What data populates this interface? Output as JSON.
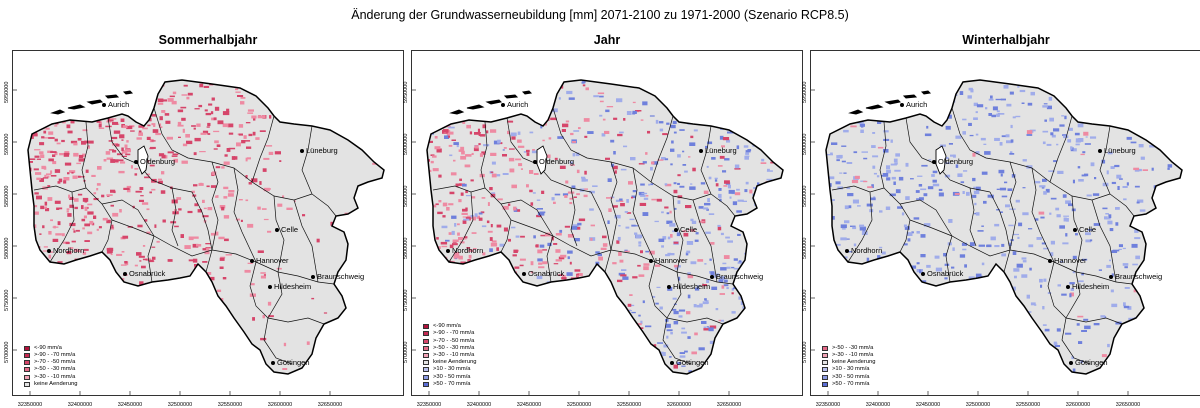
{
  "title": "Änderung der Grundwasserneubildung [mm] 2071-2100 zu 1971-2000 (Szenario RCP8.5)",
  "colors": {
    "region_fill": "#e3e3e3",
    "red_dominant": "#d6456a",
    "red_light": "#ee8aa2",
    "blue_light": "#a0acea",
    "blue_mid": "#6f80dc",
    "border": "#000000"
  },
  "x_ticks": [
    "32350000",
    "32400000",
    "32450000",
    "32500000",
    "32550000",
    "32600000",
    "32650000"
  ],
  "y_ticks": [
    "5950000",
    "5900000",
    "5850000",
    "5800000",
    "5750000",
    "5700000"
  ],
  "cities": [
    "Aurich",
    "Oldenburg",
    "Lüneburg",
    "Celle",
    "Nordhorn",
    "Osnabrück",
    "Hannover",
    "Braunschweig",
    "Hildesheim",
    "Göttingen"
  ],
  "panels": [
    {
      "title": "Sommerhalbjahr",
      "pattern": "summer",
      "legend": [
        {
          "label": "<-90 mm/a",
          "color": "#b0123b"
        },
        {
          "label": ">-90 - -70 mm/a",
          "color": "#c52a52"
        },
        {
          "label": ">-70 - -50 mm/a",
          "color": "#d6456a"
        },
        {
          "label": ">-50 - -30 mm/a",
          "color": "#e56a88"
        },
        {
          "label": ">-30 - -10 mm/a",
          "color": "#f2a3b6"
        },
        {
          "label": "keine Aenderung",
          "color": "#e3e3e3"
        }
      ]
    },
    {
      "title": "Jahr",
      "pattern": "year",
      "legend": [
        {
          "label": "<-90 mm/a",
          "color": "#b0123b"
        },
        {
          "label": ">-90 - -70 mm/a",
          "color": "#c52a52"
        },
        {
          "label": ">-70 - -50 mm/a",
          "color": "#d6456a"
        },
        {
          "label": ">-50 - -30 mm/a",
          "color": "#e56a88"
        },
        {
          "label": ">-30 - -10 mm/a",
          "color": "#f2a3b6"
        },
        {
          "label": "keine Aenderung",
          "color": "#e3e3e3"
        },
        {
          "label": ">10 - 30 mm/a",
          "color": "#b8c0ee"
        },
        {
          "label": ">30 - 50 mm/a",
          "color": "#8a98e2"
        },
        {
          "label": ">50 - 70 mm/a",
          "color": "#5b6ed6"
        }
      ]
    },
    {
      "title": "Winterhalbjahr",
      "pattern": "winter",
      "legend": [
        {
          "label": ">-50 - -30 mm/a",
          "color": "#e56a88"
        },
        {
          "label": ">-30 - -10 mm/a",
          "color": "#f2a3b6"
        },
        {
          "label": "keine Aenderung",
          "color": "#e3e3e3"
        },
        {
          "label": ">10 - 30 mm/a",
          "color": "#b8c0ee"
        },
        {
          "label": ">30 - 50 mm/a",
          "color": "#8a98e2"
        },
        {
          "label": ">50 - 70 mm/a",
          "color": "#5b6ed6"
        }
      ]
    }
  ]
}
